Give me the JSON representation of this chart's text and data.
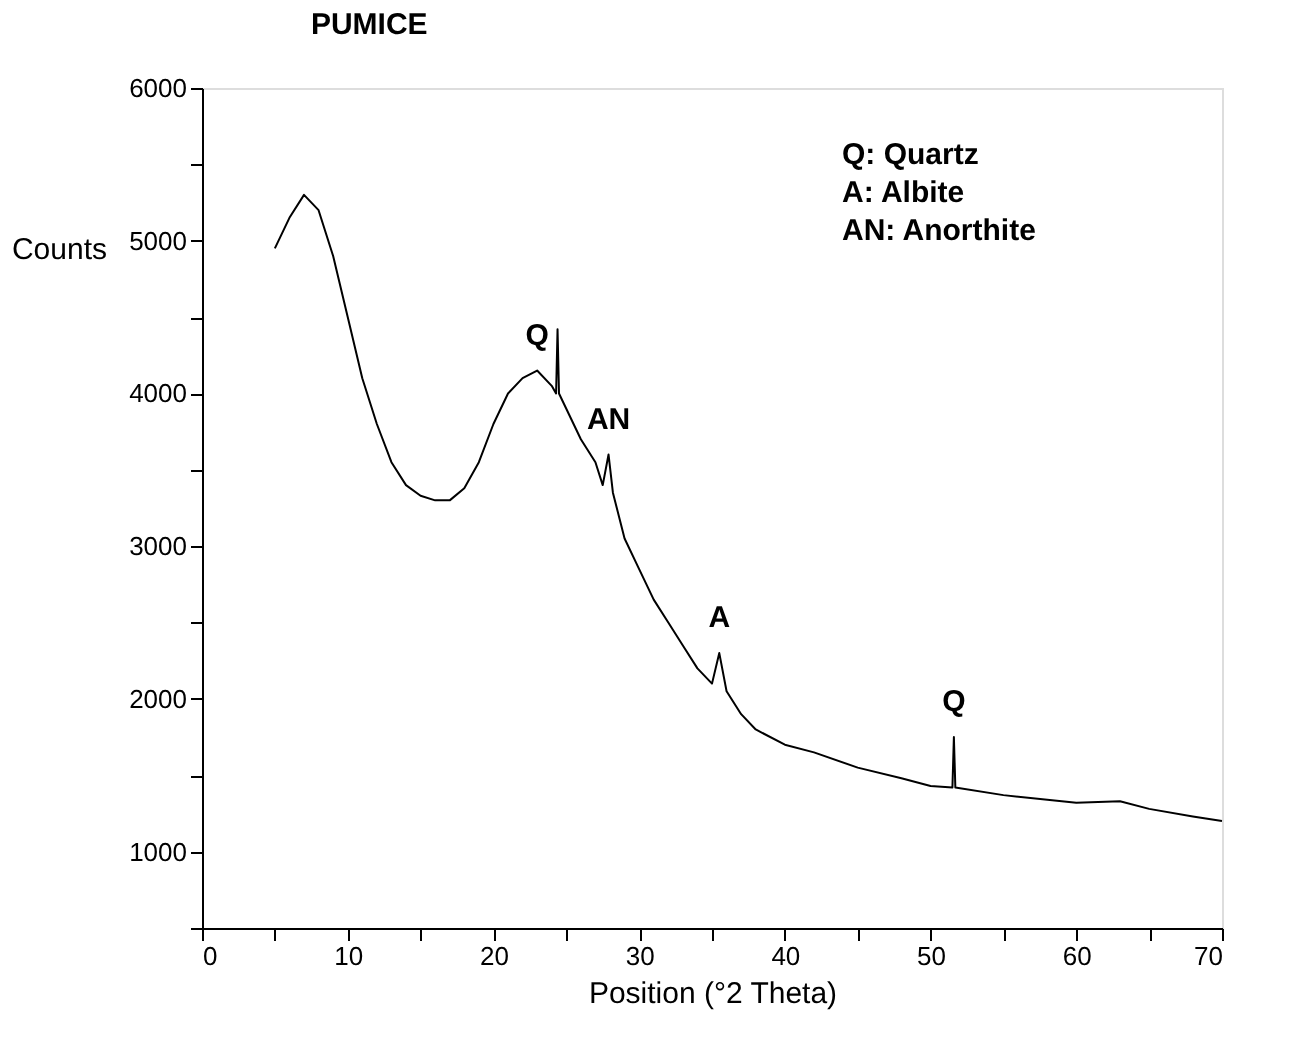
{
  "chart_data": {
    "type": "line",
    "title": "PUMICE",
    "xlabel": "Position (°2 Theta)",
    "ylabel": "Counts",
    "x": [
      5,
      6,
      7,
      8,
      9,
      10,
      11,
      12,
      13,
      14,
      15,
      16,
      17,
      18,
      19,
      20,
      21,
      22,
      23,
      24,
      24.3,
      24.4,
      24.5,
      25,
      26,
      27,
      27.5,
      27.9,
      28.2,
      29,
      30,
      31,
      32,
      33,
      34,
      35,
      35.5,
      36,
      37,
      38,
      40,
      42,
      45,
      48,
      50,
      51.5,
      51.6,
      51.7,
      55,
      60,
      63,
      65,
      68,
      70
    ],
    "series": [
      {
        "color": "#000000",
        "values": [
          4950,
          5150,
          5300,
          5200,
          4900,
          4500,
          4100,
          3800,
          3550,
          3400,
          3330,
          3300,
          3300,
          3380,
          3550,
          3800,
          4000,
          4100,
          4150,
          4050,
          4000,
          4420,
          4000,
          3900,
          3700,
          3550,
          3400,
          3600,
          3350,
          3050,
          2850,
          2650,
          2500,
          2350,
          2200,
          2100,
          2300,
          2050,
          1900,
          1800,
          1700,
          1650,
          1550,
          1480,
          1430,
          1420,
          1750,
          1420,
          1370,
          1320,
          1330,
          1280,
          1230,
          1200
        ]
      }
    ],
    "xlim": [
      0,
      70
    ],
    "xticks": [
      0,
      {
        "value": 5,
        "label": null
      },
      10,
      {
        "value": 15,
        "label": null
      },
      20,
      {
        "value": 25,
        "label": null
      },
      30,
      {
        "value": 35,
        "label": null
      },
      40,
      {
        "value": 45,
        "label": null
      },
      50,
      {
        "value": 55,
        "label": null
      },
      60,
      {
        "value": 65,
        "label": null
      },
      70
    ],
    "ylim": [
      500,
      6000
    ],
    "yticks": [
      {
        "value": 500,
        "label": null
      },
      1000,
      {
        "value": 1500,
        "label": null
      },
      2000,
      {
        "value": 2500,
        "label": null
      },
      3000,
      {
        "value": 3500,
        "label": null
      },
      4000,
      {
        "value": 4500,
        "label": null
      },
      5000,
      {
        "value": 5500,
        "label": null
      },
      6000
    ],
    "grid": false,
    "marker": "none",
    "line_style": "solid",
    "annotations": [
      {
        "text": "Q",
        "x": 23,
        "y": 4150
      },
      {
        "text": "AN",
        "x": 27.9,
        "y": 3600
      },
      {
        "text": "A",
        "x": 35.5,
        "y": 2300
      },
      {
        "text": "Q",
        "x": 51.6,
        "y": 1750
      },
      "Q: Quartz",
      "A: Albite",
      "AN: Anorthite"
    ]
  }
}
